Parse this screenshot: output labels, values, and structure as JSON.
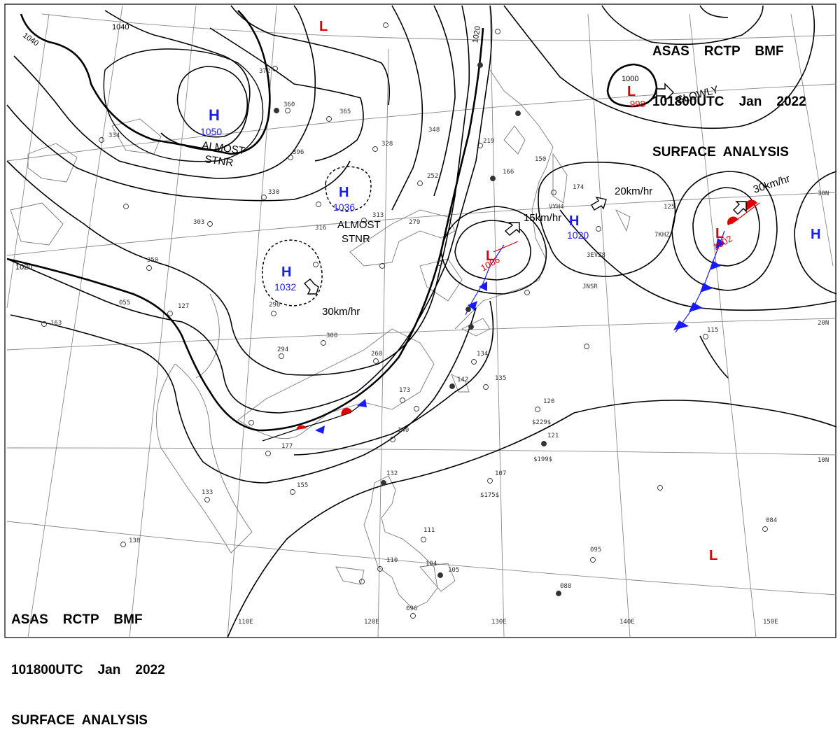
{
  "header_top": {
    "line1": "ASAS    RCTP    BMF",
    "line2": "101800UTC    Jan    2022",
    "line3": "SURFACE  ANALYSIS"
  },
  "header_bottom": {
    "line1": "ASAS    RCTP    BMF",
    "line2": "101800UTC    Jan    2022",
    "line3": "SURFACE  ANALYSIS"
  },
  "colors": {
    "high": "#1a1aff",
    "low": "#e00000",
    "front_cold": "#1a1aff",
    "front_warm": "#e00000",
    "isobar": "#000000",
    "coast": "#777777",
    "grid": "#999999"
  },
  "pressure_systems": [
    {
      "type": "H",
      "value": "1050"
    },
    {
      "type": "H",
      "value": "1036"
    },
    {
      "type": "H",
      "value": "1032"
    },
    {
      "type": "H",
      "value": "1020"
    },
    {
      "type": "H",
      "value": ""
    },
    {
      "type": "L",
      "value": ""
    },
    {
      "type": "L",
      "value": "998"
    },
    {
      "type": "L",
      "value": "1006"
    },
    {
      "type": "L",
      "value": "1002"
    },
    {
      "type": "L",
      "value": ""
    }
  ],
  "motion_labels": [
    "SLOWLY",
    "30km/hr",
    "15km/hr",
    "20km/hr",
    "30km/hr"
  ],
  "status_labels": [
    "ALMOST",
    "STNR",
    "ALMOST",
    "STNR"
  ],
  "isobar_labels": [
    "1040",
    "1040",
    "1020",
    "1020",
    "1000"
  ],
  "lon_labels": [
    "110E",
    "120E",
    "130E",
    "140E",
    "150E"
  ],
  "lat_labels": [
    "30N",
    "20N",
    "10N"
  ],
  "station_samples": [
    "372",
    "360",
    "365",
    "328",
    "396",
    "330",
    "316",
    "313",
    "279",
    "252",
    "166",
    "150",
    "174",
    "125",
    "219",
    "348",
    "334",
    "350",
    "303",
    "127",
    "055",
    "163",
    "296",
    "294",
    "300",
    "260",
    "173",
    "177",
    "155",
    "133",
    "138",
    "132",
    "107",
    "111",
    "110",
    "104",
    "105",
    "088",
    "096",
    "095",
    "084",
    "115",
    "134",
    "135",
    "142",
    "140",
    "120",
    "121",
    "$175$",
    "$199$",
    "$229$",
    "JNSR",
    "7KHZ",
    "3EVZ8",
    "VYH4"
  ]
}
